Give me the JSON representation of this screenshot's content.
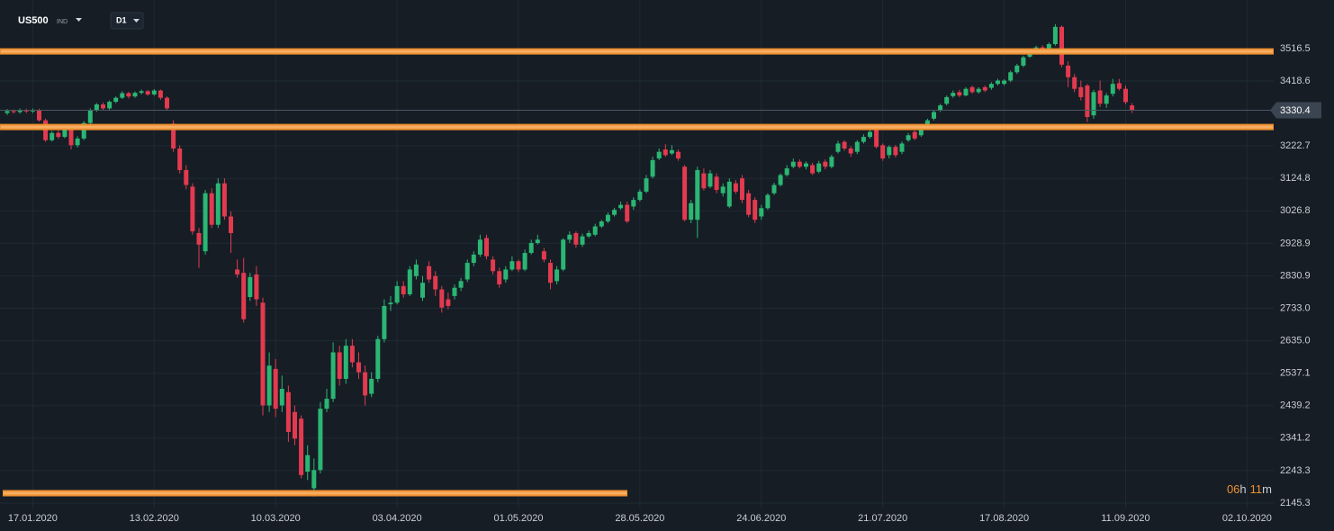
{
  "chart_data": {
    "type": "candlestick",
    "symbol": "US500",
    "instrument_type": "IND",
    "timeframe": "D1",
    "countdown": {
      "hours": "06",
      "hours_unit": "h",
      "minutes": "11",
      "minutes_unit": "m"
    },
    "current_price": 3330.4,
    "levels": [
      3508,
      3280,
      2175
    ],
    "up_color": "#2bb673",
    "down_color": "#e23a4f",
    "level_color": "#ee8f2e",
    "grid": true,
    "ylim": [
      2129,
      3663
    ],
    "yticks": [
      3516.5,
      3418.6,
      3222.7,
      3124.8,
      3026.8,
      2928.9,
      2830.9,
      {
        "value": 2733,
        "label": "2733.0"
      },
      {
        "value": 2635,
        "label": "2635.0"
      },
      2537.1,
      2439.2,
      2341.2,
      2243.3,
      2145.3
    ],
    "categories": [
      null,
      null,
      null,
      null,
      "17.01.2020",
      null,
      null,
      null,
      null,
      null,
      null,
      null,
      null,
      null,
      null,
      null,
      null,
      null,
      null,
      null,
      null,
      null,
      null,
      "13.02.2020",
      null,
      null,
      null,
      null,
      null,
      null,
      null,
      null,
      null,
      null,
      null,
      null,
      null,
      null,
      null,
      null,
      null,
      null,
      "10.03.2020",
      null,
      null,
      null,
      null,
      null,
      null,
      null,
      null,
      null,
      null,
      null,
      null,
      null,
      null,
      null,
      null,
      null,
      null,
      "03.04.2020",
      null,
      null,
      null,
      null,
      null,
      null,
      null,
      null,
      null,
      null,
      null,
      null,
      null,
      null,
      null,
      null,
      null,
      null,
      "01.05.2020",
      null,
      null,
      null,
      null,
      null,
      null,
      null,
      null,
      null,
      null,
      null,
      null,
      null,
      null,
      null,
      null,
      null,
      null,
      "28.05.2020",
      null,
      null,
      null,
      null,
      null,
      null,
      null,
      null,
      null,
      null,
      null,
      null,
      null,
      null,
      null,
      null,
      null,
      null,
      "24.06.2020",
      null,
      null,
      null,
      null,
      null,
      null,
      null,
      null,
      null,
      null,
      null,
      null,
      null,
      null,
      null,
      null,
      null,
      null,
      "21.07.2020",
      null,
      null,
      null,
      null,
      null,
      null,
      null,
      null,
      null,
      null,
      null,
      null,
      null,
      null,
      null,
      null,
      null,
      null,
      "17.08.2020",
      null,
      null,
      null,
      null,
      null,
      null,
      null,
      null,
      null,
      null,
      null,
      null,
      null,
      null,
      null,
      null,
      null,
      null,
      "11.09.2020",
      null,
      null,
      null,
      null,
      null,
      null,
      null,
      null,
      null,
      null,
      null,
      null,
      null,
      null,
      null,
      null,
      null,
      null,
      "02.10.2020"
    ],
    "open": [
      3322,
      3328,
      3325,
      3331,
      3327,
      3330,
      3300,
      3240,
      3262,
      3250,
      3272,
      3225,
      3245,
      3292,
      3330,
      3348,
      3336,
      3356,
      3368,
      3382,
      3372,
      3383,
      3388,
      3378,
      3390,
      3368,
      3290,
      3215,
      3150,
      3100,
      2960,
      2905,
      3080,
      2985,
      3110,
      3010,
      2850,
      2840,
      2767,
      2835,
      2750,
      2440,
      2550,
      2440,
      2480,
      2420,
      2400,
      2240,
      2190,
      2245,
      2430,
      2460,
      2600,
      2520,
      2620,
      2570,
      2540,
      2475,
      2520,
      2640,
      2745,
      2750,
      2800,
      2775,
      2830,
      2765,
      2860,
      2830,
      2790,
      2760,
      2770,
      2795,
      2820,
      2870,
      2895,
      2945,
      2880,
      2845,
      2820,
      2850,
      2875,
      2850,
      2900,
      2930,
      2905,
      2870,
      2815,
      2850,
      2940,
      2960,
      2925,
      2950,
      2955,
      2980,
      2995,
      3015,
      3035,
      3045,
      3040,
      3060,
      3085,
      3130,
      3185,
      3212,
      3200,
      3205,
      3160,
      3000,
      3000,
      3140,
      3100,
      3130,
      3080,
      3040,
      3110,
      3125,
      3080,
      3060,
      3010,
      3035,
      3080,
      3105,
      3135,
      3160,
      3175,
      3160,
      3165,
      3145,
      3175,
      3160,
      3205,
      3235,
      3215,
      3205,
      3235,
      3250,
      3275,
      3225,
      3195,
      3220,
      3205,
      3240,
      3265,
      3255,
      3280,
      3305,
      3330,
      3350,
      3373,
      3385,
      3375,
      3400,
      3385,
      3400,
      3398,
      3410,
      3410,
      3420,
      3445,
      3465,
      3492,
      3505,
      3520,
      3515,
      3530,
      3582,
      3465,
      3430,
      3400,
      3405,
      3315,
      3390,
      3350,
      3380,
      3412,
      3395,
      3345,
      null,
      null,
      null,
      null,
      null,
      null,
      null,
      null,
      null,
      null,
      null,
      null,
      null,
      null,
      null,
      null,
      null,
      null
    ],
    "high": [
      3334,
      3333,
      3336,
      3335,
      3336,
      3335,
      3305,
      3268,
      3270,
      3278,
      3280,
      3252,
      3298,
      3336,
      3352,
      3354,
      3360,
      3372,
      3388,
      3386,
      3387,
      3393,
      3392,
      3394,
      3393,
      3372,
      3300,
      3225,
      3165,
      3110,
      2975,
      3090,
      3095,
      3125,
      3125,
      3025,
      2880,
      2885,
      2840,
      2860,
      2765,
      2600,
      2580,
      2530,
      2500,
      2440,
      2410,
      2320,
      2280,
      2450,
      2490,
      2630,
      2620,
      2640,
      2640,
      2600,
      2560,
      2540,
      2650,
      2760,
      2770,
      2815,
      2815,
      2860,
      2880,
      2830,
      2875,
      2845,
      2800,
      2780,
      2805,
      2825,
      2880,
      2905,
      2955,
      2955,
      2890,
      2855,
      2860,
      2890,
      2880,
      2910,
      2940,
      2955,
      2915,
      2880,
      2860,
      2945,
      2965,
      2965,
      2958,
      2968,
      2988,
      3000,
      3022,
      3036,
      3055,
      3055,
      3068,
      3092,
      3135,
      3190,
      3215,
      3228,
      3225,
      3212,
      3165,
      3060,
      3160,
      3155,
      3150,
      3140,
      3110,
      3125,
      3120,
      3135,
      3090,
      3068,
      3045,
      3080,
      3112,
      3140,
      3165,
      3185,
      3182,
      3176,
      3172,
      3178,
      3182,
      3196,
      3238,
      3240,
      3222,
      3240,
      3258,
      3272,
      3285,
      3230,
      3225,
      3226,
      3236,
      3262,
      3270,
      3280,
      3305,
      3330,
      3350,
      3375,
      3390,
      3392,
      3400,
      3405,
      3400,
      3405,
      3415,
      3425,
      3424,
      3450,
      3470,
      3495,
      3508,
      3525,
      3526,
      3535,
      3590,
      3586,
      3478,
      3440,
      3420,
      3410,
      3392,
      3420,
      3382,
      3425,
      3425,
      3405,
      3352,
      null,
      null,
      null,
      null,
      null,
      null,
      null,
      null,
      null,
      null,
      null,
      null,
      null,
      null,
      null,
      null,
      null,
      null
    ],
    "low": [
      3316,
      3320,
      3320,
      3322,
      3322,
      3296,
      3235,
      3236,
      3244,
      3246,
      3212,
      3218,
      3240,
      3288,
      3326,
      3330,
      3332,
      3352,
      3364,
      3366,
      3368,
      3378,
      3374,
      3374,
      3362,
      3330,
      3205,
      3140,
      3092,
      2955,
      2855,
      2895,
      2975,
      2975,
      3000,
      2900,
      2825,
      2690,
      2755,
      2740,
      2410,
      2420,
      2405,
      2420,
      2330,
      2320,
      2220,
      2215,
      2165,
      2235,
      2420,
      2450,
      2500,
      2505,
      2555,
      2520,
      2440,
      2465,
      2510,
      2630,
      2725,
      2745,
      2765,
      2770,
      2820,
      2755,
      2810,
      2770,
      2720,
      2730,
      2760,
      2785,
      2812,
      2860,
      2888,
      2880,
      2835,
      2795,
      2810,
      2845,
      2842,
      2845,
      2895,
      2925,
      2872,
      2790,
      2805,
      2845,
      2930,
      2915,
      2918,
      2945,
      2950,
      2975,
      2990,
      3010,
      3030,
      2990,
      3030,
      3055,
      3080,
      3125,
      3180,
      3190,
      3195,
      3178,
      2995,
      2990,
      2945,
      3088,
      3095,
      3080,
      3070,
      3035,
      3078,
      3050,
      3008,
      2990,
      3000,
      3030,
      3075,
      3100,
      3130,
      3155,
      3155,
      3152,
      3135,
      3140,
      3152,
      3155,
      3200,
      3208,
      3190,
      3198,
      3230,
      3245,
      3215,
      3178,
      3185,
      3188,
      3198,
      3235,
      3240,
      3250,
      3275,
      3300,
      3325,
      3345,
      3368,
      3370,
      3372,
      3380,
      3380,
      3385,
      3392,
      3405,
      3405,
      3415,
      3440,
      3460,
      3488,
      3500,
      3505,
      3510,
      3525,
      3460,
      3400,
      3385,
      3360,
      3295,
      3305,
      3340,
      3338,
      3372,
      3390,
      3348,
      3322,
      null,
      null,
      null,
      null,
      null,
      null,
      null,
      null,
      null,
      null,
      null,
      null,
      null,
      null,
      null,
      null,
      null,
      null
    ],
    "close": [
      3328,
      3325,
      3331,
      3327,
      3330,
      3300,
      3240,
      3262,
      3250,
      3272,
      3225,
      3245,
      3292,
      3330,
      3348,
      3336,
      3356,
      3368,
      3382,
      3372,
      3383,
      3388,
      3378,
      3390,
      3368,
      3336,
      3215,
      3150,
      3105,
      2965,
      2925,
      3080,
      2985,
      3110,
      3010,
      2960,
      2835,
      2700,
      2827,
      2760,
      2440,
      2560,
      2430,
      2490,
      2360,
      2340,
      2230,
      2290,
      2245,
      2430,
      2460,
      2600,
      2520,
      2620,
      2570,
      2540,
      2470,
      2520,
      2640,
      2740,
      2750,
      2800,
      2775,
      2850,
      2865,
      2810,
      2820,
      2790,
      2735,
      2740,
      2795,
      2815,
      2870,
      2895,
      2940,
      2890,
      2845,
      2805,
      2850,
      2875,
      2850,
      2900,
      2930,
      2940,
      2880,
      2810,
      2850,
      2940,
      2955,
      2925,
      2950,
      2960,
      2980,
      2995,
      3015,
      3030,
      3045,
      2995,
      3060,
      3085,
      3125,
      3180,
      3205,
      3195,
      3210,
      3185,
      3000,
      3050,
      3150,
      3095,
      3140,
      3090,
      3100,
      3115,
      3085,
      3060,
      3015,
      3000,
      3035,
      3075,
      3105,
      3135,
      3155,
      3175,
      3160,
      3170,
      3140,
      3170,
      3160,
      3190,
      3230,
      3215,
      3200,
      3235,
      3250,
      3265,
      3220,
      3185,
      3220,
      3195,
      3230,
      3255,
      3245,
      3275,
      3300,
      3325,
      3345,
      3370,
      3383,
      3375,
      3395,
      3385,
      3395,
      3390,
      3410,
      3420,
      3420,
      3445,
      3465,
      3490,
      3502,
      3520,
      3512,
      3530,
      3582,
      3468,
      3430,
      3395,
      3370,
      3310,
      3385,
      3350,
      3375,
      3410,
      3395,
      3355,
      3330.4,
      null,
      null,
      null,
      null,
      null,
      null,
      null,
      null,
      null,
      null,
      null,
      null,
      null,
      null,
      null,
      null,
      null,
      null
    ]
  }
}
